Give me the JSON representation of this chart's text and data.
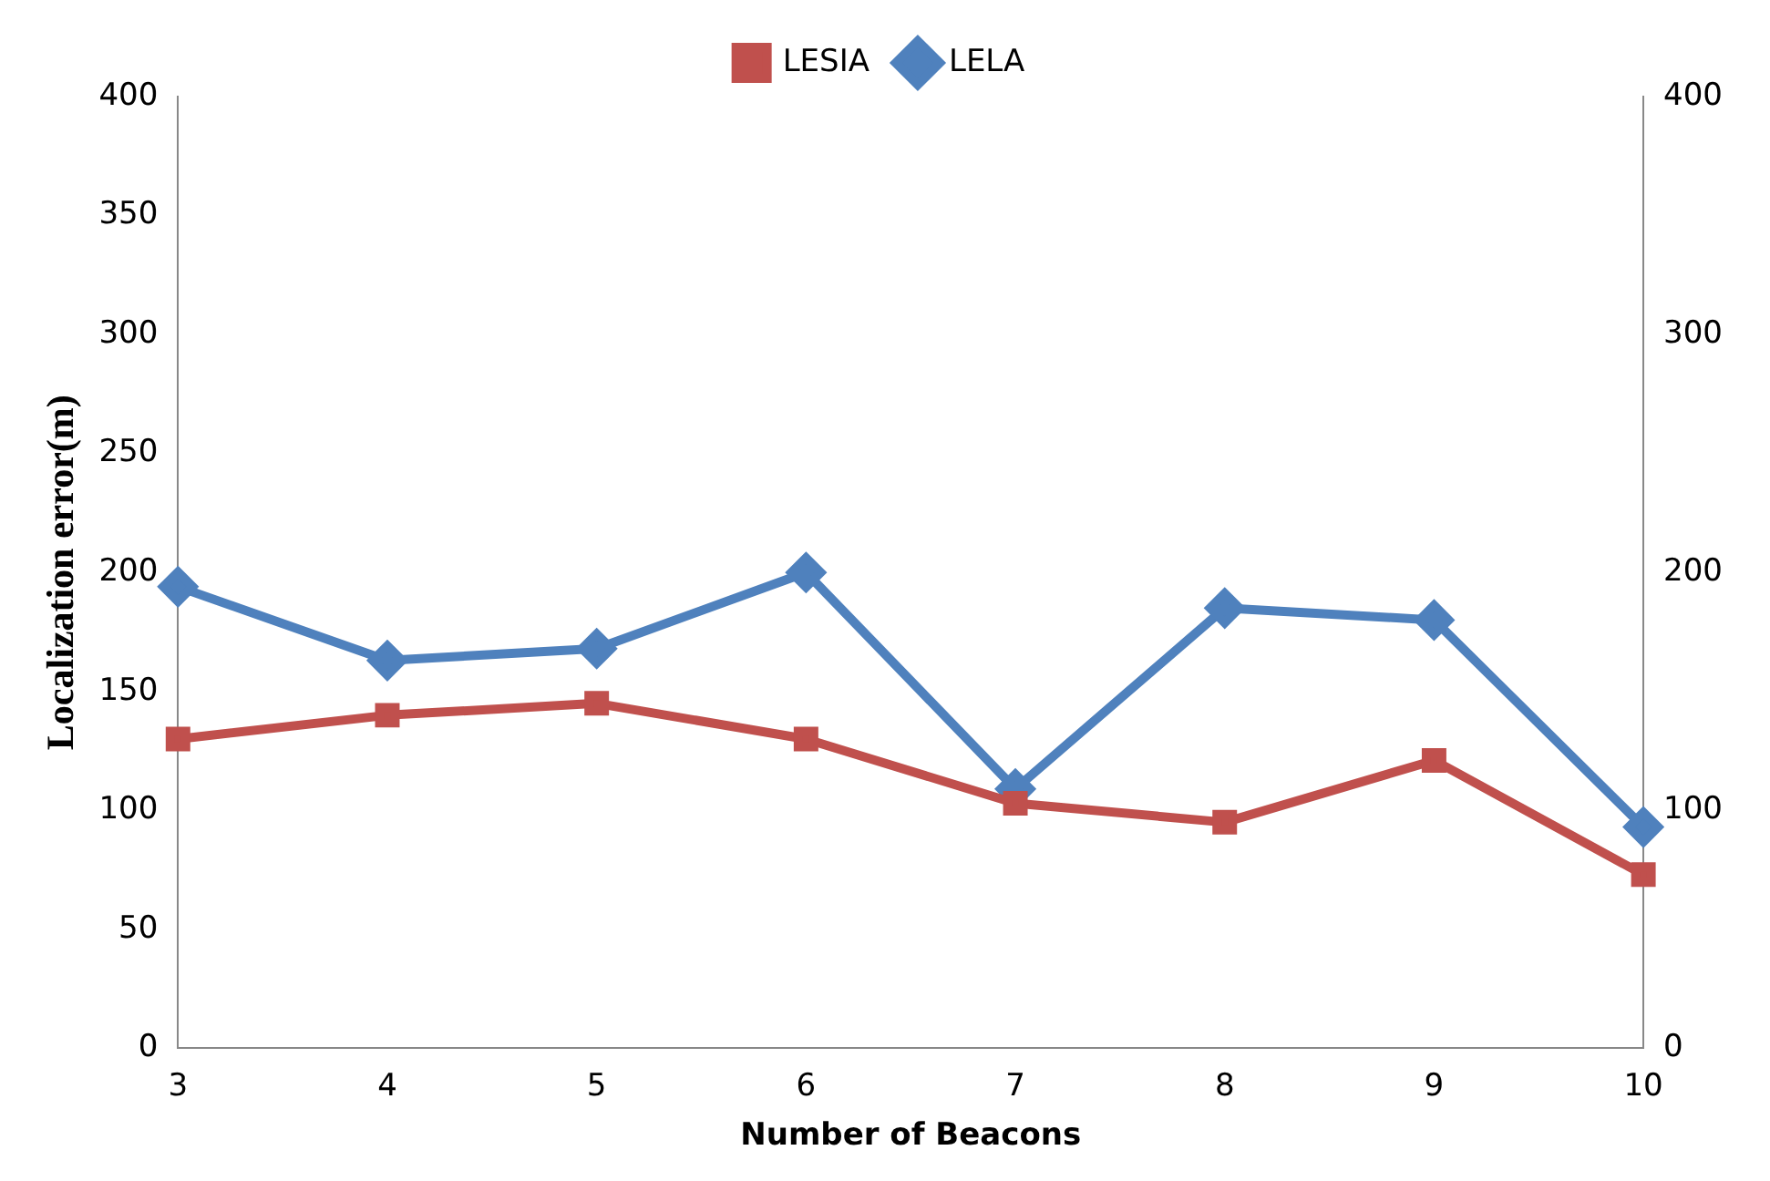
{
  "chart_data": {
    "type": "line",
    "xlabel": "Number of Beacons",
    "ylabel": "Localization error(m)",
    "categories": [
      "3",
      "4",
      "5",
      "6",
      "7",
      "8",
      "9",
      "10"
    ],
    "series": [
      {
        "name": "LELA",
        "color": "#4f81bd",
        "marker": "diamond",
        "values": [
          194,
          163,
          168,
          200,
          109,
          185,
          180,
          93
        ]
      },
      {
        "name": "LESIA",
        "color": "#c0504d",
        "marker": "square",
        "values": [
          130,
          140,
          145,
          130,
          103,
          95,
          121,
          73
        ]
      }
    ],
    "ylim": [
      0,
      400
    ],
    "yticks": [
      0,
      50,
      100,
      150,
      200,
      250,
      300,
      350,
      400
    ],
    "y2lim": [
      0,
      400
    ],
    "y2ticks": [
      0,
      100,
      200,
      300,
      400
    ],
    "legend": "top",
    "grid": false
  }
}
